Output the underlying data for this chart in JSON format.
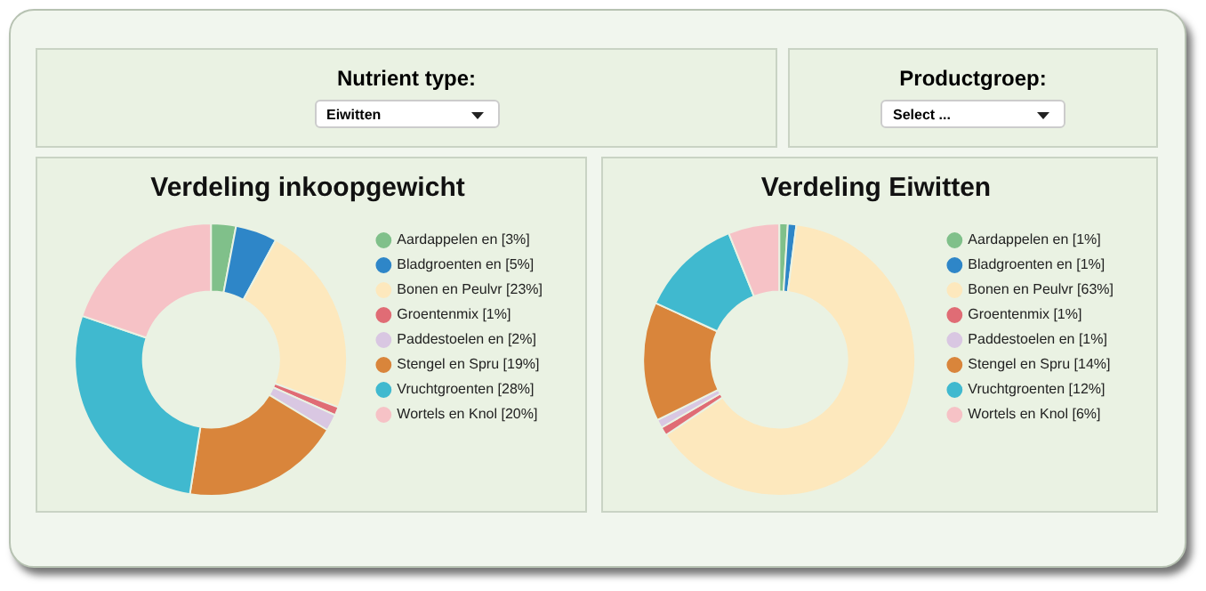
{
  "chart_data": [
    {
      "type": "other",
      "title": "Nutrient type:",
      "annotations": [
        "Eiwitten"
      ]
    },
    {
      "type": "other",
      "title": "Productgroep:",
      "annotations": [
        "Select ..."
      ]
    },
    {
      "type": "donut",
      "title": "Verdeling inkoopgewicht",
      "legend": "right",
      "categories": [
        "Aardappelen en [3%]",
        "Bladgroenten en [5%]",
        "Bonen en Peulvr [23%]",
        "Groentenmix [1%]",
        "Paddestoelen en [2%]",
        "Stengel en Spru [19%]",
        "Vruchtgroenten [28%]",
        "Wortels en Knol [20%]"
      ],
      "values": [
        3,
        5,
        23,
        1,
        2,
        19,
        28,
        20
      ],
      "colors": [
        "#80c08a",
        "#2e86c8",
        "#fde8bd",
        "#e06c75",
        "#d9c7e2",
        "#d9853b",
        "#40b9cf",
        "#f6c2c6"
      ]
    },
    {
      "type": "donut",
      "title": "Verdeling Eiwitten",
      "legend": "right",
      "categories": [
        "Aardappelen en [1%]",
        "Bladgroenten en [1%]",
        "Bonen en Peulvr [63%]",
        "Groentenmix [1%]",
        "Paddestoelen en [1%]",
        "Stengel en Spru [14%]",
        "Vruchtgroenten [12%]",
        "Wortels en Knol [6%]"
      ],
      "values": [
        1,
        1,
        63,
        1,
        1,
        14,
        12,
        6
      ],
      "colors": [
        "#80c08a",
        "#2e86c8",
        "#fde8bd",
        "#e06c75",
        "#d9c7e2",
        "#d9853b",
        "#40b9cf",
        "#f6c2c6"
      ]
    }
  ]
}
